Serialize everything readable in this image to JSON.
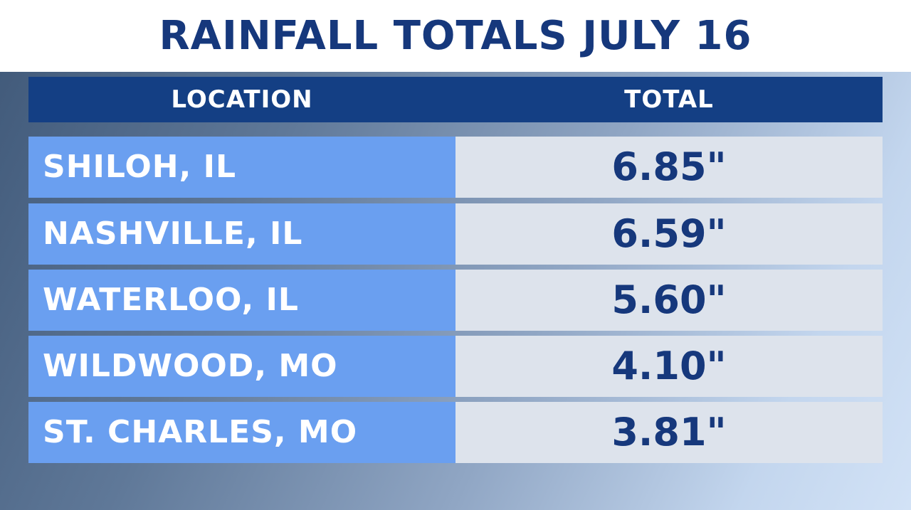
{
  "chart_data": {
    "type": "table",
    "title": "RAINFALL TOTALS JULY 16",
    "columns": [
      "LOCATION",
      "TOTAL"
    ],
    "rows": [
      {
        "location": "SHILOH, IL",
        "total": "6.85\"",
        "value": 6.85
      },
      {
        "location": "NASHVILLE, IL",
        "total": "6.59\"",
        "value": 6.59
      },
      {
        "location": "WATERLOO, IL",
        "total": "5.60\"",
        "value": 5.6
      },
      {
        "location": "WILDWOOD, MO",
        "total": "4.10\"",
        "value": 4.1
      },
      {
        "location": "ST. CHARLES, MO",
        "total": "3.81\"",
        "value": 3.81
      }
    ]
  },
  "colors": {
    "title_text": "#16387c",
    "header_bg": "#143f84",
    "location_cell_bg": "#6a9ff0",
    "total_cell_bg": "#dde3ec",
    "total_text": "#16387c"
  }
}
